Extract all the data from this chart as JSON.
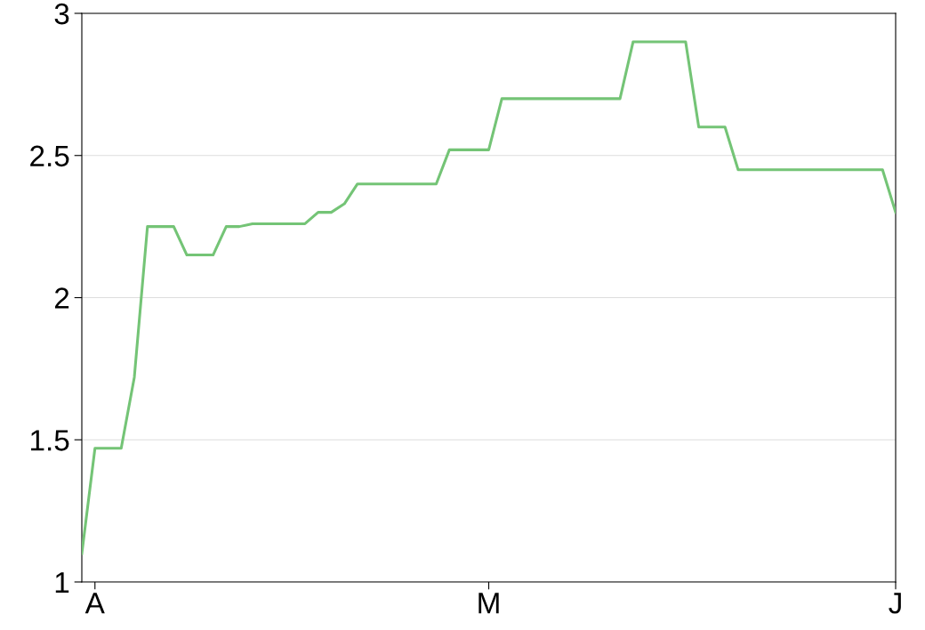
{
  "chart_data": {
    "type": "line",
    "color": "#74c476",
    "categories": [
      null,
      "A",
      null,
      null,
      null,
      null,
      null,
      null,
      null,
      null,
      null,
      null,
      null,
      null,
      null,
      null,
      null,
      null,
      null,
      null,
      null,
      null,
      null,
      null,
      null,
      null,
      null,
      null,
      null,
      null,
      null,
      "M",
      null,
      null,
      null,
      null,
      null,
      null,
      null,
      null,
      null,
      null,
      null,
      null,
      null,
      null,
      null,
      null,
      null,
      null,
      null,
      null,
      null,
      null,
      null,
      null,
      null,
      null,
      null,
      null,
      null,
      null,
      "J"
    ],
    "values": [
      1.1,
      1.47,
      1.47,
      1.47,
      1.72,
      2.25,
      2.25,
      2.25,
      2.15,
      2.15,
      2.15,
      2.25,
      2.25,
      2.26,
      2.26,
      2.26,
      2.26,
      2.26,
      2.3,
      2.3,
      2.33,
      2.4,
      2.4,
      2.4,
      2.4,
      2.4,
      2.4,
      2.4,
      2.52,
      2.52,
      2.52,
      2.52,
      2.7,
      2.7,
      2.7,
      2.7,
      2.7,
      2.7,
      2.7,
      2.7,
      2.7,
      2.7,
      2.9,
      2.9,
      2.9,
      2.9,
      2.9,
      2.6,
      2.6,
      2.6,
      2.45,
      2.45,
      2.45,
      2.45,
      2.45,
      2.45,
      2.45,
      2.45,
      2.45,
      2.45,
      2.45,
      2.45,
      2.3
    ],
    "ylim": [
      1,
      3
    ],
    "yticks": [
      1,
      1.5,
      2,
      2.5,
      3
    ],
    "grid": "y",
    "marker": "none",
    "line_style": "solid"
  }
}
